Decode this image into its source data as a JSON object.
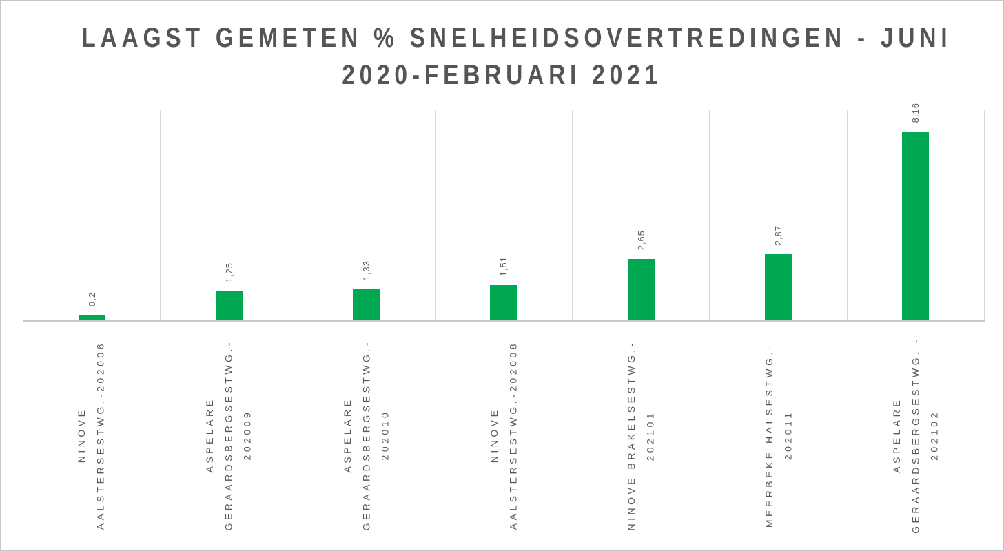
{
  "chart_data": {
    "type": "bar",
    "title": "LAAGST GEMETEN % SNELHEIDSOVERTREDINGEN - JUNI 2020-FEBRUARI 2021",
    "title_lines": [
      "LAAGST GEMETEN % SNELHEIDSOVERTREDINGEN - JUNI",
      "2020-FEBRUARI 2021"
    ],
    "categories": [
      "NINOVE AALSTERSESTWG.-202006",
      "ASPELARE GERAARDSBERGSESTWG.-202009",
      "ASPELARE GERAARDSBERGSESTWG.-202010",
      "NINOVE AALSTERSESTWG.-202008",
      "NINOVE BRAKELSESTWG.-202101",
      "MEERBEKE HALSESTWG.-202011",
      "ASPELARE GERAARDSBERGSESTWG. -202102"
    ],
    "category_lines": [
      [
        "NINOVE",
        "AALSTERSESTWG.-202006"
      ],
      [
        "ASPELARE",
        "GERAARDSBERGSESTWG.-",
        "202009"
      ],
      [
        "ASPELARE",
        "GERAARDSBERGSESTWG.-",
        "202010"
      ],
      [
        "NINOVE",
        "AALSTERSESTWG.-202008"
      ],
      [
        "NINOVE BRAKELSESTWG.-",
        "202101"
      ],
      [
        "MEERBEKE HALSESTWG.-",
        "202011"
      ],
      [
        "ASPELARE",
        "GERAARDSBERGSESTWG. -",
        "202102"
      ]
    ],
    "values": [
      0.2,
      1.25,
      1.33,
      1.51,
      2.65,
      2.87,
      8.16
    ],
    "value_labels": [
      "0,2",
      "1,25",
      "1,33",
      "1,51",
      "2,65",
      "2,87",
      "8,16"
    ],
    "xlabel": "",
    "ylabel": "",
    "ylim": [
      0,
      9.1
    ],
    "grid": "vertical-category-separators",
    "legend": "none",
    "colors": {
      "bar": "#00A852",
      "title_text": "#555555",
      "label_text": "#595959",
      "gridline": "#D9D9D9",
      "axis_line": "#C8C8C8",
      "frame_border": "#C6C6C6",
      "background": "#FFFFFF"
    }
  }
}
